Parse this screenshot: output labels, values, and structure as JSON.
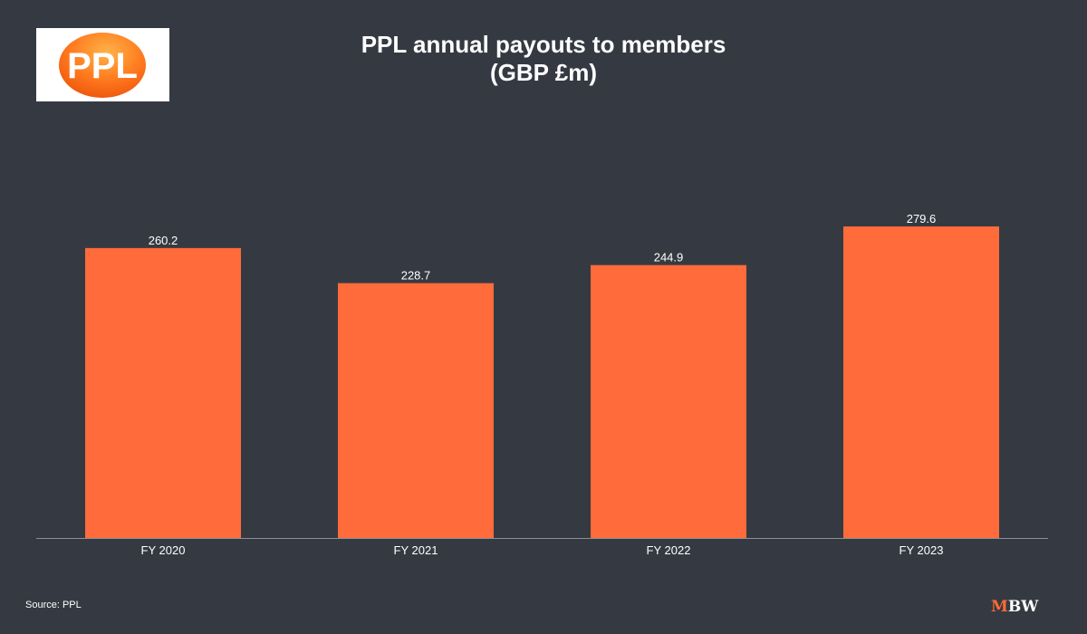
{
  "logo": {
    "text": "PPL",
    "icon": "ppl-logo-icon"
  },
  "title_line1": "PPL annual payouts to members",
  "title_line2": "(GBP £m)",
  "source": "Source: PPL",
  "brand": {
    "m": "M",
    "bw": "BW",
    "icon": "mbw-logo-icon"
  },
  "colors": {
    "background": "#353a42",
    "bar": "#ff6b3a",
    "text": "#ffffff",
    "axis": "#8a8f96"
  },
  "chart_data": {
    "type": "bar",
    "title": "PPL annual payouts to members (GBP £m)",
    "categories": [
      "FY 2020",
      "FY 2021",
      "FY 2022",
      "FY 2023"
    ],
    "values": [
      260.2,
      228.7,
      244.9,
      279.6
    ],
    "labels": [
      "260.2",
      "228.7",
      "244.9",
      "279.6"
    ],
    "xlabel": "",
    "ylabel": "",
    "ylim": [
      0,
      279.6
    ],
    "grid": false,
    "legend": "none"
  }
}
